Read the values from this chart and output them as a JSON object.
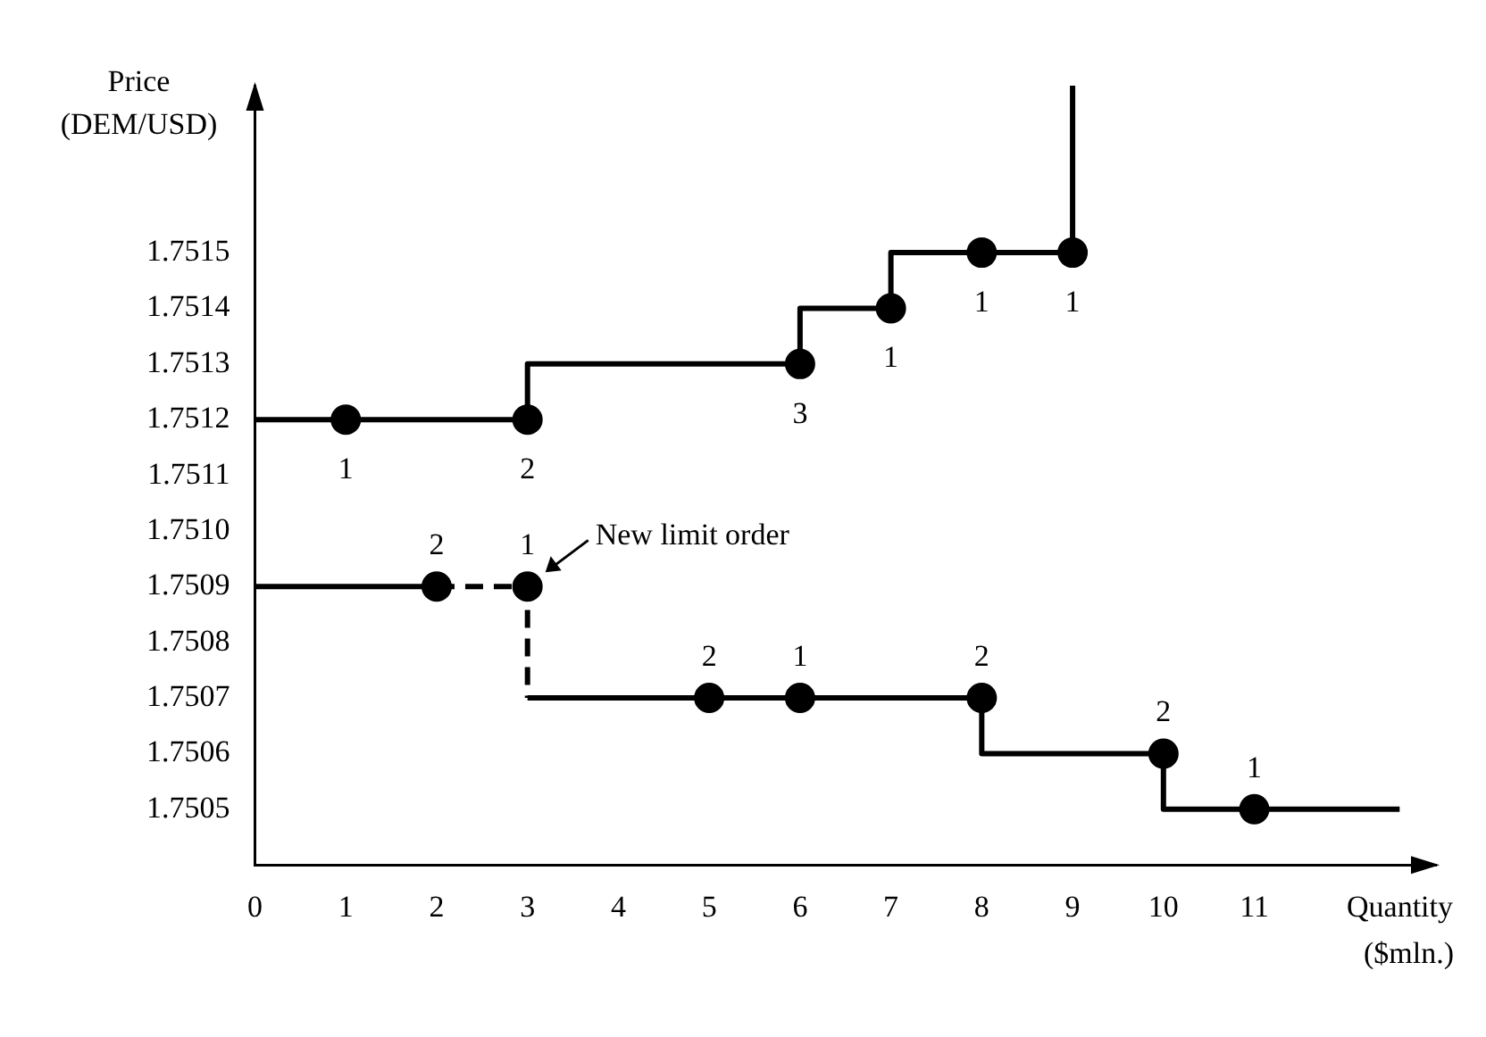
{
  "chart_data": {
    "type": "step",
    "xlabel": "Quantity ($mln.)",
    "ylabel": "Price\n(DEM/USD)",
    "xlim": [
      0,
      13
    ],
    "xticks": [
      0,
      1,
      2,
      3,
      4,
      5,
      6,
      7,
      8,
      9,
      10,
      11
    ],
    "ylim": [
      1.7504,
      1.7518
    ],
    "yticks": [
      1.7505,
      1.7506,
      1.7507,
      1.7508,
      1.7509,
      {
        "value": 1.751,
        "label": "1.7510"
      },
      1.7511,
      1.7512,
      1.7513,
      1.7514,
      1.7515
    ],
    "grid": false,
    "legend": false,
    "series": [
      {
        "color": "#000000",
        "x": [
          0,
          3,
          6,
          7,
          9
        ],
        "values": [
          1.7512,
          1.7513,
          1.7514,
          1.7515,
          1.7518
        ]
      },
      {
        "color": "#000000",
        "x": [
          0,
          2
        ],
        "values": [
          1.7509,
          1.7509
        ]
      },
      {
        "color": "#000000",
        "line_style": "dashed",
        "x": [
          2,
          3,
          3
        ],
        "values": [
          1.7509,
          1.7507,
          1.7507
        ]
      },
      {
        "color": "#000000",
        "x": [
          3,
          8,
          10,
          12.6
        ],
        "values": [
          1.7507,
          1.7506,
          1.7505,
          1.7505
        ]
      },
      {
        "type": "scatter",
        "color": "#000000",
        "marker": "circle",
        "x": [
          1,
          3,
          6,
          7,
          8,
          9
        ],
        "values": [
          1.7512,
          1.7512,
          1.7513,
          1.7514,
          1.7515,
          1.7515
        ]
      },
      {
        "type": "scatter",
        "color": "#000000",
        "marker": "circle",
        "x": [
          2,
          3,
          5,
          6,
          8,
          10,
          11
        ],
        "values": [
          1.7509,
          1.7509,
          1.7507,
          1.7507,
          1.7507,
          1.7506,
          1.7505
        ]
      }
    ],
    "annotations": [
      {
        "text": "1",
        "x": 1,
        "y": 1.7512
      },
      {
        "text": "2",
        "x": 3,
        "y": 1.7512
      },
      {
        "text": "3",
        "x": 6,
        "y": 1.7513
      },
      {
        "text": "1",
        "x": 7,
        "y": 1.7514
      },
      {
        "text": "1",
        "x": 8,
        "y": 1.7515
      },
      {
        "text": "1",
        "x": 9,
        "y": 1.7515
      },
      {
        "text": "2",
        "x": 2,
        "y": 1.7509
      },
      {
        "text": "1",
        "x": 3,
        "y": 1.7509
      },
      {
        "text": "2",
        "x": 5,
        "y": 1.7507
      },
      {
        "text": "1",
        "x": 6,
        "y": 1.7507
      },
      {
        "text": "2",
        "x": 8,
        "y": 1.7507
      },
      {
        "text": "2",
        "x": 10,
        "y": 1.7506
      },
      {
        "text": "1",
        "x": 11,
        "y": 1.7505
      },
      {
        "text": "New limit order",
        "x": 3,
        "y": 1.7509
      }
    ]
  }
}
